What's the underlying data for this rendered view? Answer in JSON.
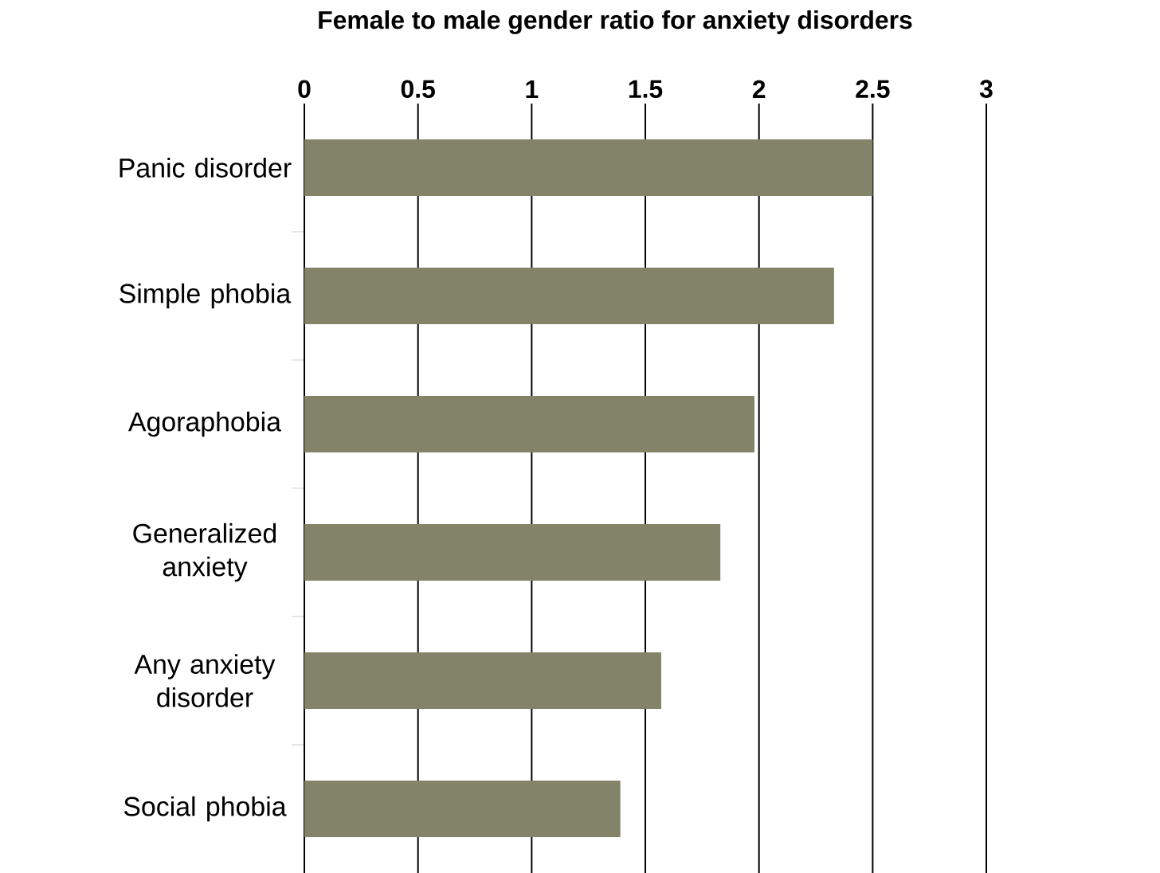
{
  "chart_data": {
    "type": "bar",
    "orientation": "horizontal",
    "title": "Female to male gender ratio for anxiety disorders",
    "categories": [
      "Panic disorder",
      "Simple phobia",
      "Agoraphobia",
      "Generalized anxiety",
      "Any anxiety disorder",
      "Social phobia"
    ],
    "values": [
      2.5,
      2.33,
      1.98,
      1.83,
      1.57,
      1.39
    ],
    "color": "#83836a",
    "xlim": [
      0,
      3
    ],
    "xticks": [
      0,
      0.5,
      1,
      1.5,
      2,
      2.5,
      3
    ],
    "grid": "x"
  }
}
